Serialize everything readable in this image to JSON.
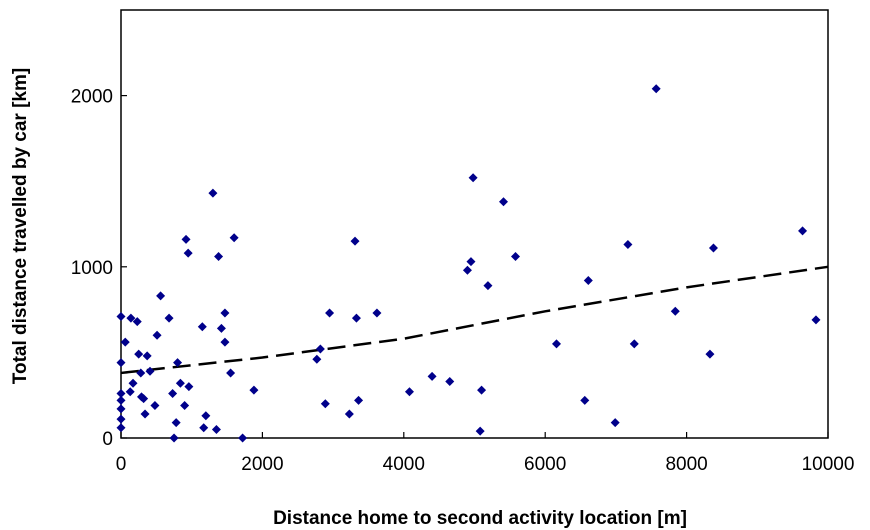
{
  "chart_data": {
    "type": "scatter",
    "title": "",
    "xlabel": "Distance home to second activity location [m]",
    "ylabel": "Total distance travelled by car [km]",
    "xlim": [
      0,
      10000
    ],
    "ylim": [
      0,
      2500
    ],
    "x_ticks": [
      0,
      2000,
      4000,
      6000,
      8000,
      10000
    ],
    "y_ticks": [
      0,
      1000,
      2000
    ],
    "x_tick_labels": [
      "0",
      "2000",
      "4000",
      "6000",
      "8000",
      "10000"
    ],
    "y_tick_labels": [
      "0",
      "1000",
      "2000"
    ],
    "grid": false,
    "colors": {
      "points": "#00008b",
      "trend": "#000000"
    },
    "series": [
      {
        "points": [
          [
            0,
            710
          ],
          [
            0,
            440
          ],
          [
            0,
            260
          ],
          [
            0,
            220
          ],
          [
            0,
            170
          ],
          [
            0,
            110
          ],
          [
            0,
            60
          ],
          [
            60,
            560
          ],
          [
            130,
            270
          ],
          [
            140,
            700
          ],
          [
            170,
            320
          ],
          [
            230,
            680
          ],
          [
            250,
            490
          ],
          [
            280,
            380
          ],
          [
            290,
            240
          ],
          [
            320,
            230
          ],
          [
            340,
            140
          ],
          [
            370,
            480
          ],
          [
            410,
            390
          ],
          [
            480,
            190
          ],
          [
            510,
            600
          ],
          [
            560,
            830
          ],
          [
            680,
            700
          ],
          [
            730,
            260
          ],
          [
            750,
            0
          ],
          [
            780,
            90
          ],
          [
            800,
            440
          ],
          [
            840,
            320
          ],
          [
            900,
            190
          ],
          [
            920,
            1160
          ],
          [
            950,
            1080
          ],
          [
            960,
            300
          ],
          [
            1150,
            650
          ],
          [
            1170,
            60
          ],
          [
            1200,
            130
          ],
          [
            1300,
            1430
          ],
          [
            1350,
            50
          ],
          [
            1380,
            1060
          ],
          [
            1420,
            640
          ],
          [
            1470,
            560
          ],
          [
            1470,
            730
          ],
          [
            1550,
            380
          ],
          [
            1600,
            1170
          ],
          [
            1720,
            0
          ],
          [
            1880,
            280
          ],
          [
            2770,
            460
          ],
          [
            2820,
            520
          ],
          [
            2890,
            200
          ],
          [
            2950,
            730
          ],
          [
            3230,
            140
          ],
          [
            3310,
            1150
          ],
          [
            3330,
            700
          ],
          [
            3360,
            220
          ],
          [
            3620,
            730
          ],
          [
            4080,
            270
          ],
          [
            4400,
            360
          ],
          [
            4650,
            330
          ],
          [
            4900,
            980
          ],
          [
            4950,
            1030
          ],
          [
            4980,
            1520
          ],
          [
            5080,
            40
          ],
          [
            5100,
            280
          ],
          [
            5190,
            890
          ],
          [
            5410,
            1380
          ],
          [
            5580,
            1060
          ],
          [
            6160,
            550
          ],
          [
            6560,
            220
          ],
          [
            6610,
            920
          ],
          [
            6990,
            90
          ],
          [
            7170,
            1130
          ],
          [
            7260,
            550
          ],
          [
            7570,
            2040
          ],
          [
            7840,
            740
          ],
          [
            8330,
            490
          ],
          [
            8380,
            1110
          ],
          [
            9640,
            1210
          ],
          [
            9830,
            690
          ]
        ]
      }
    ],
    "trendline": {
      "style": "dashed",
      "points": [
        [
          0,
          380
        ],
        [
          2000,
          470
        ],
        [
          4000,
          580
        ],
        [
          6000,
          740
        ],
        [
          8000,
          880
        ],
        [
          10000,
          1000
        ]
      ]
    }
  }
}
